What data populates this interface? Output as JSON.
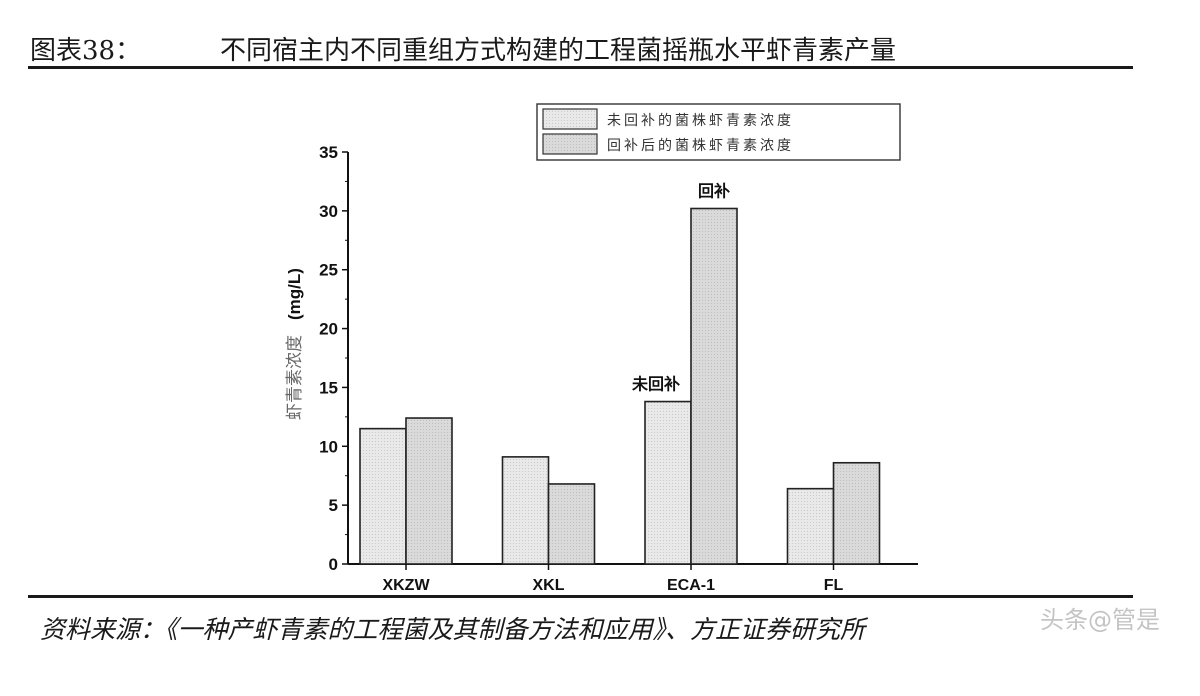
{
  "figure": {
    "number": "图表38：",
    "title": "不同宿主内不同重组方式构建的工程菌摇瓶水平虾青素产量",
    "source": "资料来源：《一种产虾青素的工程菌及其制备方法和应用》、方正证券研究所",
    "watermark": "头条@管是"
  },
  "chart_data": {
    "type": "bar",
    "categories": [
      "XKZW",
      "XKL",
      "ECA-1",
      "FL"
    ],
    "series": [
      {
        "name": "未回补的菌株虾青素浓度",
        "values": [
          11.5,
          9.1,
          13.8,
          6.4
        ],
        "color": "#e6e6e6"
      },
      {
        "name": "回补后的菌株虾青素浓度",
        "values": [
          12.4,
          6.8,
          30.2,
          8.6
        ],
        "color": "#d6d6d6"
      }
    ],
    "ylabel_cn": "虾青素浓度",
    "ylabel_unit": "(mg/L)",
    "ylim": [
      0,
      35
    ],
    "yticks": [
      "0",
      "5",
      "10",
      "15",
      "20",
      "25",
      "30",
      "35"
    ],
    "annotations": [
      {
        "text": "未回补",
        "category": "ECA-1",
        "series": 0
      },
      {
        "text": "回补",
        "category": "ECA-1",
        "series": 1
      }
    ],
    "legend_position": "top-right",
    "grid": false
  }
}
